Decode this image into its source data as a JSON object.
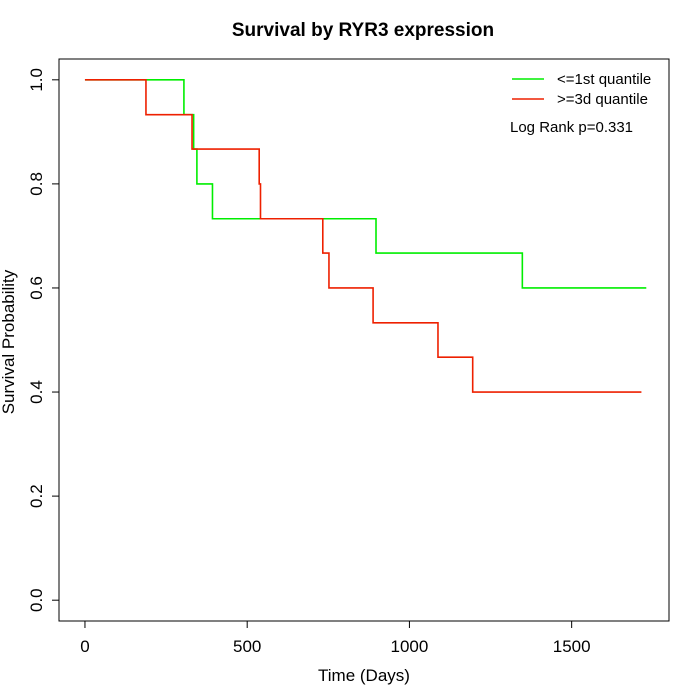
{
  "chart_data": {
    "type": "line",
    "title": "Survival by RYR3 expression",
    "xlabel": "Time (Days)",
    "ylabel": "Survival Probability",
    "xlim": [
      -80,
      1800
    ],
    "ylim": [
      -0.04,
      1.04
    ],
    "xticks": [
      0,
      500,
      1000,
      1500
    ],
    "yticks": [
      0.0,
      0.2,
      0.4,
      0.6,
      0.8,
      1.0
    ],
    "xtick_labels": [
      "0",
      "500",
      "1000",
      "1500"
    ],
    "ytick_labels": [
      "0.0",
      "0.2",
      "0.4",
      "0.6",
      "0.8",
      "1.0"
    ],
    "legend_position": "top-right",
    "annotation": "Log Rank p=0.331",
    "grid": false,
    "series": [
      {
        "name": "<=1st quantile",
        "color": "#00ee00",
        "steps": [
          [
            0,
            1.0
          ],
          [
            305,
            0.933
          ],
          [
            335,
            0.867
          ],
          [
            345,
            0.8
          ],
          [
            393,
            0.733
          ],
          [
            897,
            0.667
          ],
          [
            1348,
            0.6
          ],
          [
            1730,
            0.6
          ]
        ]
      },
      {
        "name": ">=3d quantile",
        "color": "#ee2000",
        "steps": [
          [
            0,
            1.0
          ],
          [
            188,
            0.933
          ],
          [
            330,
            0.867
          ],
          [
            537,
            0.8
          ],
          [
            541,
            0.733
          ],
          [
            733,
            0.667
          ],
          [
            752,
            0.6
          ],
          [
            888,
            0.533
          ],
          [
            1088,
            0.467
          ],
          [
            1195,
            0.4
          ],
          [
            1715,
            0.4
          ]
        ]
      }
    ]
  }
}
